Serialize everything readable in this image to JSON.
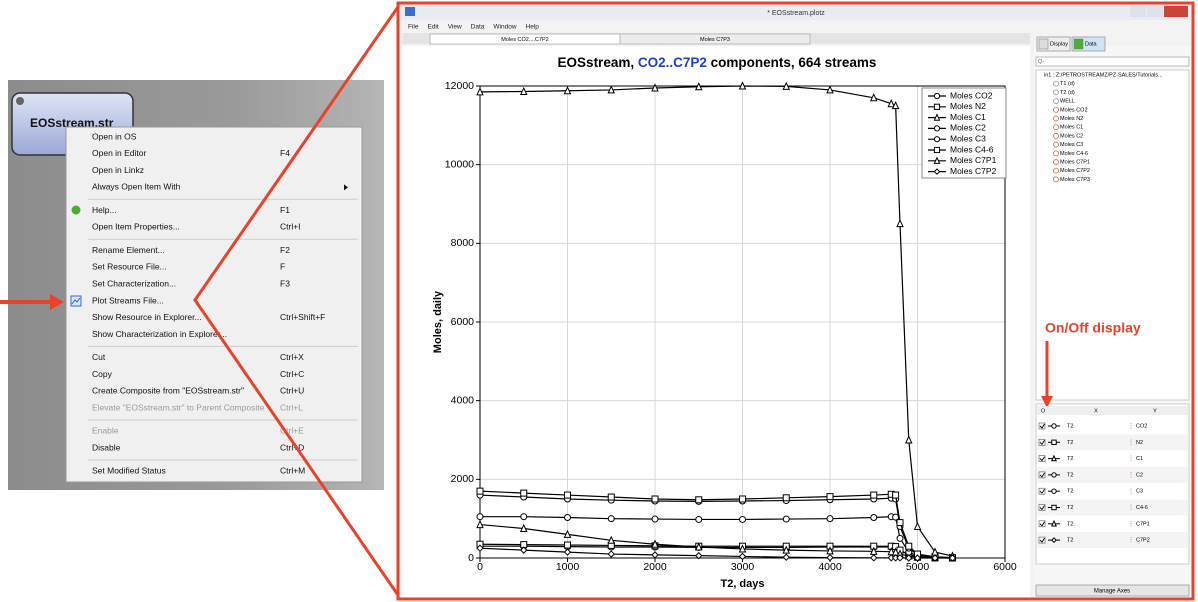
{
  "node": {
    "label": "EOSstream.str"
  },
  "context_menu": {
    "groups": [
      [
        {
          "label": "Open in OS"
        },
        {
          "label": "Open in Editor",
          "shortcut": "F4"
        },
        {
          "label": "Open in Linkz"
        },
        {
          "label": "Always Open Item With",
          "submenu": true
        }
      ],
      [
        {
          "label": "Help...",
          "shortcut": "F1"
        },
        {
          "label": "Open Item Properties...",
          "shortcut": "Ctrl+I"
        }
      ],
      [
        {
          "label": "Rename Element...",
          "shortcut": "F2"
        },
        {
          "label": "Set Resource File...",
          "shortcut": "F"
        },
        {
          "label": "Set Characterization...",
          "shortcut": "F3"
        },
        {
          "label": "Plot Streams File..."
        },
        {
          "label": "Show Resource in Explorer...",
          "shortcut": "Ctrl+Shift+F"
        },
        {
          "label": "Show Characterization in Explorer..."
        }
      ],
      [
        {
          "label": "Cut",
          "shortcut": "Ctrl+X"
        },
        {
          "label": "Copy",
          "shortcut": "Ctrl+C"
        },
        {
          "label": "Create Composite from \"EOSstream.str\"",
          "shortcut": "Ctrl+U"
        },
        {
          "label": "Elevate \"EOSstream.str\" to Parent Composite",
          "shortcut": "Ctrl+L",
          "enabled": false
        }
      ],
      [
        {
          "label": "Enable",
          "shortcut": "Ctrl+E",
          "enabled": false
        },
        {
          "label": "Disable",
          "shortcut": "Ctrl+D"
        }
      ],
      [
        {
          "label": "Set Modified Status",
          "shortcut": "Ctrl+M"
        }
      ]
    ]
  },
  "window": {
    "title": "* EOSstream.plotz",
    "menu": [
      "File",
      "Edit",
      "View",
      "Data",
      "Window",
      "Help"
    ],
    "tabs": [
      "Moles CO2....C7P2",
      "Moles C7P3"
    ]
  },
  "chart_data": {
    "type": "line",
    "title": [
      "EOSstream, ",
      "CO2..C7P2",
      " components, 664 streams"
    ],
    "title_colors": [
      "#000000",
      "#1f3fd0",
      "#000000"
    ],
    "xlabel": "T2, days",
    "ylabel": "Moles, daily",
    "x": [
      0,
      500,
      1000,
      1500,
      2000,
      2500,
      3000,
      3500,
      4000,
      4500,
      4700,
      4750,
      4800,
      4900,
      5000,
      5200,
      5400
    ],
    "xlim": [
      0,
      6000
    ],
    "xticks": [
      0,
      1000,
      2000,
      3000,
      4000,
      5000,
      6000
    ],
    "ylim": [
      0,
      12000
    ],
    "yticks": [
      0,
      2000,
      4000,
      6000,
      8000,
      10000,
      12000
    ],
    "grid": true,
    "legend": "upper right",
    "series": [
      {
        "name": "Moles CO2",
        "color": "#000000",
        "marker": "circle",
        "values": [
          300,
          300,
          290,
          280,
          280,
          270,
          270,
          270,
          280,
          280,
          280,
          270,
          200,
          80,
          30,
          5,
          0
        ]
      },
      {
        "name": "Moles N2",
        "color": "#000000",
        "marker": "square",
        "values": [
          350,
          340,
          330,
          320,
          310,
          300,
          300,
          300,
          300,
          300,
          300,
          290,
          200,
          80,
          30,
          5,
          0
        ]
      },
      {
        "name": "Moles C1",
        "color": "#000000",
        "marker": "triangle",
        "values": [
          850,
          750,
          600,
          450,
          350,
          280,
          230,
          200,
          180,
          170,
          160,
          150,
          100,
          50,
          20,
          5,
          0
        ]
      },
      {
        "name": "Moles C2",
        "color": "#000000",
        "marker": "circle",
        "values": [
          1050,
          1050,
          1030,
          1000,
          990,
          980,
          980,
          990,
          1000,
          1030,
          1050,
          1040,
          500,
          150,
          50,
          10,
          0
        ]
      },
      {
        "name": "Moles C3",
        "color": "#000000",
        "marker": "circle",
        "values": [
          1600,
          1550,
          1500,
          1470,
          1450,
          1440,
          1450,
          1460,
          1480,
          1500,
          1520,
          1500,
          800,
          250,
          80,
          20,
          5
        ]
      },
      {
        "name": "Moles C4-6",
        "color": "#000000",
        "marker": "square",
        "values": [
          1700,
          1650,
          1600,
          1550,
          1500,
          1480,
          1500,
          1530,
          1560,
          1600,
          1620,
          1600,
          900,
          300,
          100,
          30,
          10
        ]
      },
      {
        "name": "Moles C7P1",
        "color": "#000000",
        "marker": "triangle",
        "values": [
          11850,
          11860,
          11880,
          11900,
          11950,
          11980,
          12000,
          11990,
          11900,
          11700,
          11550,
          11500,
          8500,
          3000,
          800,
          150,
          50
        ]
      },
      {
        "name": "Moles C7P2",
        "color": "#000000",
        "marker": "diamond",
        "values": [
          250,
          200,
          150,
          100,
          80,
          60,
          40,
          20,
          10,
          5,
          5,
          5,
          5,
          0,
          0,
          0,
          0
        ]
      }
    ]
  },
  "side_panel": {
    "buttons": [
      "Display",
      "Data"
    ],
    "search": "Q-",
    "tree": [
      "in1 : Z:/PETROSTREAMZ/PZ-SALES/Tutorials...",
      "T1 (d)",
      "T2 (d)",
      "WELL",
      "Moles CO2",
      "Moles N2",
      "Moles C1",
      "Moles C2",
      "Moles C3",
      "Moles C4-6",
      "Moles C7P1",
      "Moles C7P2",
      "Moles C7P3"
    ],
    "columns": [
      "O",
      "X",
      "Y"
    ],
    "rows": [
      {
        "x": "T2",
        "y": "CO2",
        "checked": true
      },
      {
        "x": "T2",
        "y": "N2",
        "checked": true
      },
      {
        "x": "T2",
        "y": "C1",
        "checked": true
      },
      {
        "x": "T2",
        "y": "C2",
        "checked": true
      },
      {
        "x": "T2",
        "y": "C3",
        "checked": true
      },
      {
        "x": "T2",
        "y": "C4-6",
        "checked": true
      },
      {
        "x": "T2",
        "y": "C7P1",
        "checked": true
      },
      {
        "x": "T2",
        "y": "C7P2",
        "checked": true
      }
    ],
    "manage_button": "Manage Axes"
  },
  "annotation": "On/Off display"
}
